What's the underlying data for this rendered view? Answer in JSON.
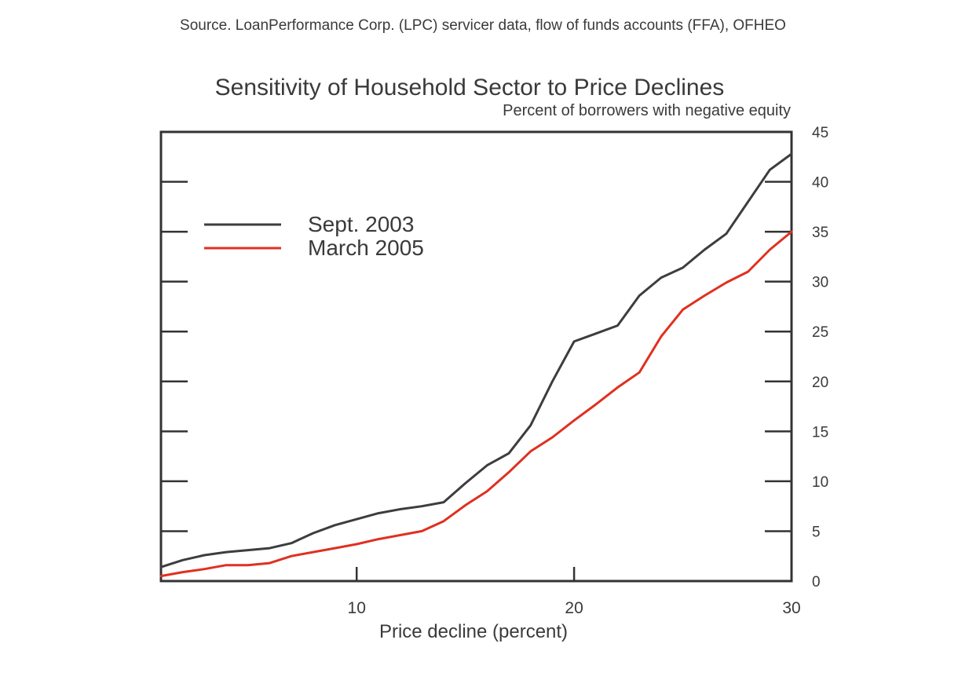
{
  "source_note": "Source. LoanPerformance Corp. (LPC) servicer data, flow of funds accounts (FFA), OFHEO",
  "chart_data": {
    "type": "line",
    "title": "Sensitivity of Household Sector to Price Declines",
    "subtitle": "Percent of borrowers with negative equity",
    "xlabel": "Price decline (percent)",
    "ylabel": "",
    "xlim": [
      1,
      30
    ],
    "ylim": [
      0,
      45
    ],
    "x_ticks": [
      10,
      20,
      30
    ],
    "y_ticks": [
      0,
      5,
      10,
      15,
      20,
      25,
      30,
      35,
      40,
      45
    ],
    "y_axis_side": "right",
    "grid": false,
    "legend_position": "upper-left",
    "x": [
      1,
      2,
      3,
      4,
      5,
      6,
      7,
      8,
      9,
      10,
      11,
      12,
      13,
      14,
      15,
      16,
      17,
      18,
      19,
      20,
      21,
      22,
      23,
      24,
      25,
      26,
      27,
      28,
      29,
      30
    ],
    "series": [
      {
        "name": "Sept. 2003",
        "color": "#3d3d3d",
        "values": [
          1.4,
          2.1,
          2.6,
          2.9,
          3.1,
          3.3,
          3.8,
          4.8,
          5.6,
          6.2,
          6.8,
          7.2,
          7.5,
          7.9,
          9.8,
          11.6,
          12.8,
          15.6,
          20.0,
          24.0,
          24.8,
          25.6,
          28.6,
          30.4,
          31.4,
          33.2,
          34.8,
          38.0,
          41.2,
          42.8
        ]
      },
      {
        "name": "March 2005",
        "color": "#e03020",
        "values": [
          0.5,
          0.9,
          1.2,
          1.6,
          1.6,
          1.8,
          2.5,
          2.9,
          3.3,
          3.7,
          4.2,
          4.6,
          5.0,
          6.0,
          7.6,
          9.0,
          10.9,
          13.0,
          14.4,
          16.1,
          17.7,
          19.4,
          20.9,
          24.5,
          27.2,
          28.6,
          29.9,
          31.0,
          33.2,
          35.0
        ]
      }
    ]
  }
}
